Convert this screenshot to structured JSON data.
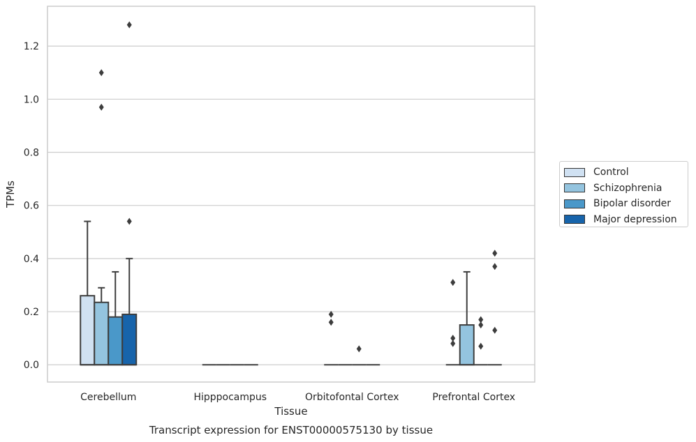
{
  "chart_data": {
    "type": "box",
    "title": "Transcript expression for ENST00000575130 by tissue",
    "xlabel": "Tissue",
    "ylabel": "TPMs",
    "ylim": [
      -0.065,
      1.35
    ],
    "yticks": [
      "0.0",
      "0.2",
      "0.4",
      "0.6",
      "0.8",
      "1.0",
      "1.2"
    ],
    "ytick_values": [
      0.0,
      0.2,
      0.4,
      0.6,
      0.8,
      1.0,
      1.2
    ],
    "grid": "horizontal",
    "legend_position": "right",
    "categories": [
      "Cerebellum",
      "Hipppocampus",
      "Orbitofontal Cortex",
      "Prefrontal Cortex"
    ],
    "series": [
      {
        "name": "Control",
        "color": "#d0e1f2",
        "boxes": [
          {
            "q1": 0.0,
            "median": 0.0,
            "q3": 0.26,
            "whisker_low": 0.0,
            "whisker_high": 0.54,
            "outliers": []
          },
          {
            "q1": 0.0,
            "median": 0.0,
            "q3": 0.0,
            "whisker_low": 0.0,
            "whisker_high": 0.0,
            "outliers": []
          },
          {
            "q1": 0.0,
            "median": 0.0,
            "q3": 0.0,
            "whisker_low": 0.0,
            "whisker_high": 0.0,
            "outliers": [
              0.19,
              0.16
            ]
          },
          {
            "q1": 0.0,
            "median": 0.0,
            "q3": 0.0,
            "whisker_low": 0.0,
            "whisker_high": 0.0,
            "outliers": [
              0.31,
              0.1,
              0.08
            ]
          }
        ]
      },
      {
        "name": "Schizophrenia",
        "color": "#94c4df",
        "boxes": [
          {
            "q1": 0.0,
            "median": 0.0,
            "q3": 0.235,
            "whisker_low": 0.0,
            "whisker_high": 0.29,
            "outliers": [
              1.1,
              0.97
            ]
          },
          {
            "q1": 0.0,
            "median": 0.0,
            "q3": 0.0,
            "whisker_low": 0.0,
            "whisker_high": 0.0,
            "outliers": []
          },
          {
            "q1": 0.0,
            "median": 0.0,
            "q3": 0.0,
            "whisker_low": 0.0,
            "whisker_high": 0.0,
            "outliers": []
          },
          {
            "q1": 0.0,
            "median": 0.0,
            "q3": 0.15,
            "whisker_low": 0.0,
            "whisker_high": 0.35,
            "outliers": []
          }
        ]
      },
      {
        "name": "Bipolar disorder",
        "color": "#4a98c9",
        "boxes": [
          {
            "q1": 0.0,
            "median": 0.0,
            "q3": 0.18,
            "whisker_low": 0.0,
            "whisker_high": 0.35,
            "outliers": []
          },
          {
            "q1": 0.0,
            "median": 0.0,
            "q3": 0.0,
            "whisker_low": 0.0,
            "whisker_high": 0.0,
            "outliers": []
          },
          {
            "q1": 0.0,
            "median": 0.0,
            "q3": 0.0,
            "whisker_low": 0.0,
            "whisker_high": 0.0,
            "outliers": [
              0.06
            ]
          },
          {
            "q1": 0.0,
            "median": 0.0,
            "q3": 0.0,
            "whisker_low": 0.0,
            "whisker_high": 0.0,
            "outliers": [
              0.17,
              0.15,
              0.07
            ]
          }
        ]
      },
      {
        "name": "Major depression",
        "color": "#1764ab",
        "boxes": [
          {
            "q1": 0.0,
            "median": 0.0,
            "q3": 0.19,
            "whisker_low": 0.0,
            "whisker_high": 0.4,
            "outliers": [
              1.28,
              0.54
            ]
          },
          {
            "q1": 0.0,
            "median": 0.0,
            "q3": 0.0,
            "whisker_low": 0.0,
            "whisker_high": 0.0,
            "outliers": []
          },
          {
            "q1": 0.0,
            "median": 0.0,
            "q3": 0.0,
            "whisker_low": 0.0,
            "whisker_high": 0.0,
            "outliers": []
          },
          {
            "q1": 0.0,
            "median": 0.0,
            "q3": 0.0,
            "whisker_low": 0.0,
            "whisker_high": 0.0,
            "outliers": [
              0.42,
              0.37,
              0.13
            ]
          }
        ]
      }
    ]
  }
}
